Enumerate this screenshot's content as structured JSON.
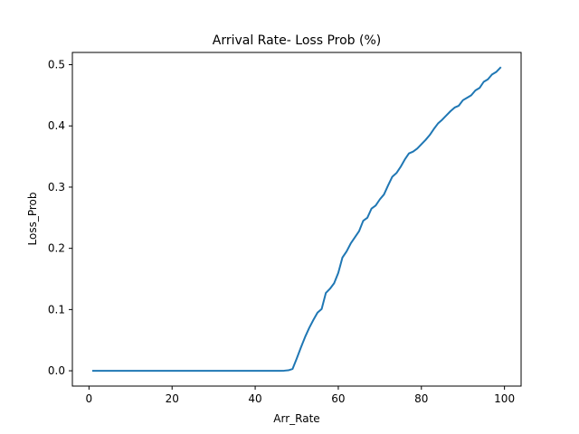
{
  "chart_data": {
    "type": "line",
    "title": "Arrival Rate- Loss Prob (%)",
    "xlabel": "Arr_Rate",
    "ylabel": "Loss_Prob",
    "xlim": [
      -4,
      104
    ],
    "ylim": [
      -0.025,
      0.52
    ],
    "xticks": [
      0,
      20,
      40,
      60,
      80,
      100
    ],
    "xtick_labels": [
      "0",
      "20",
      "40",
      "60",
      "80",
      "100"
    ],
    "yticks": [
      0.0,
      0.1,
      0.2,
      0.3,
      0.4,
      0.5
    ],
    "ytick_labels": [
      "0.0",
      "0.1",
      "0.2",
      "0.3",
      "0.4",
      "0.5"
    ],
    "grid": false,
    "series": [
      {
        "color": "#1f77b4",
        "x": [
          1,
          2,
          3,
          4,
          5,
          6,
          7,
          8,
          9,
          10,
          11,
          12,
          13,
          14,
          15,
          16,
          17,
          18,
          19,
          20,
          21,
          22,
          23,
          24,
          25,
          26,
          27,
          28,
          29,
          30,
          31,
          32,
          33,
          34,
          35,
          36,
          37,
          38,
          39,
          40,
          41,
          42,
          43,
          44,
          45,
          46,
          47,
          48,
          49,
          50,
          51,
          52,
          53,
          54,
          55,
          56,
          57,
          58,
          59,
          60,
          61,
          62,
          63,
          64,
          65,
          66,
          67,
          68,
          69,
          70,
          71,
          72,
          73,
          74,
          75,
          76,
          77,
          78,
          79,
          80,
          81,
          82,
          83,
          84,
          85,
          86,
          87,
          88,
          89,
          90,
          91,
          92,
          93,
          94,
          95,
          96,
          97,
          98,
          99
        ],
        "y": [
          0,
          0,
          0,
          0,
          0,
          0,
          0,
          0,
          0,
          0,
          0,
          0,
          0,
          0,
          0,
          0,
          0,
          0,
          0,
          0,
          0,
          0,
          0,
          0,
          0,
          0,
          0,
          0,
          0,
          0,
          0,
          0,
          0,
          0,
          0,
          0,
          0,
          0,
          0,
          0,
          0,
          0,
          0,
          0,
          0,
          0,
          0.0002,
          0.0008,
          0.003,
          0.02,
          0.038,
          0.055,
          0.07,
          0.083,
          0.095,
          0.101,
          0.127,
          0.134,
          0.143,
          0.16,
          0.185,
          0.195,
          0.208,
          0.218,
          0.228,
          0.245,
          0.25,
          0.265,
          0.27,
          0.28,
          0.288,
          0.303,
          0.317,
          0.323,
          0.333,
          0.345,
          0.355,
          0.358,
          0.363,
          0.37,
          0.377,
          0.385,
          0.395,
          0.404,
          0.41,
          0.417,
          0.424,
          0.43,
          0.433,
          0.442,
          0.446,
          0.45,
          0.458,
          0.462,
          0.472,
          0.476,
          0.484,
          0.488,
          0.495
        ]
      }
    ]
  }
}
